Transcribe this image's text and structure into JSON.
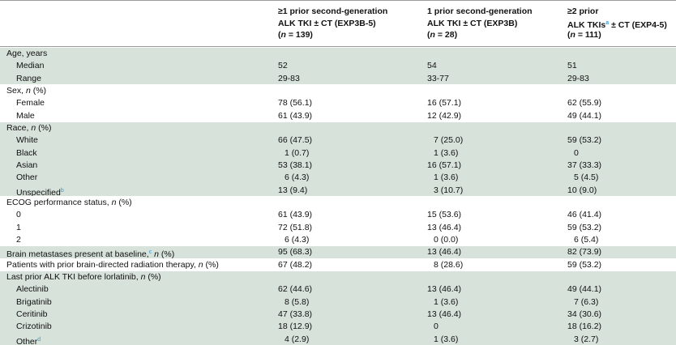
{
  "header": {
    "columns": [
      {
        "lines": [
          [
            "≥1 prior second-generation"
          ],
          [
            "ALK TKI ± CT (EXP3B-5)"
          ],
          [
            "(",
            {
              "text": "n",
              "style": "italic"
            },
            " = 139)"
          ]
        ]
      },
      {
        "lines": [
          [
            "1 prior second-generation"
          ],
          [
            "ALK TKI ± CT (EXP3B)"
          ],
          [
            "(",
            {
              "text": "n",
              "style": "italic"
            },
            " = 28)"
          ]
        ]
      },
      {
        "lines": [
          [
            "≥2 prior"
          ],
          [
            "ALK TKIs",
            {
              "text": "a",
              "style": "sup"
            },
            " ± CT (EXP4-5)"
          ],
          [
            "(",
            {
              "text": "n",
              "style": "italic"
            },
            " = 111)"
          ]
        ]
      }
    ]
  },
  "shade_color": "#d6e2da",
  "sections": [
    {
      "shaded": true,
      "rows": [
        {
          "label": [
            "Age, years"
          ],
          "indent": false,
          "values": []
        },
        {
          "label": [
            "Median"
          ],
          "indent": true,
          "values": [
            "52",
            "54",
            "51"
          ]
        },
        {
          "label": [
            "Range"
          ],
          "indent": true,
          "values": [
            "29-83",
            "33-77",
            "29-83"
          ]
        }
      ]
    },
    {
      "shaded": false,
      "rows": [
        {
          "label": [
            "Sex, ",
            {
              "text": "n",
              "style": "italic"
            },
            " (%)"
          ],
          "indent": false,
          "values": []
        },
        {
          "label": [
            "Female"
          ],
          "indent": true,
          "values": [
            "78 (56.1)",
            "16 (57.1)",
            "62 (55.9)"
          ]
        },
        {
          "label": [
            "Male"
          ],
          "indent": true,
          "values": [
            "61 (43.9)",
            "12 (42.9)",
            "49 (44.1)"
          ]
        }
      ]
    },
    {
      "shaded": true,
      "rows": [
        {
          "label": [
            "Race, ",
            {
              "text": "n",
              "style": "italic"
            },
            " (%)"
          ],
          "indent": false,
          "values": []
        },
        {
          "label": [
            "White"
          ],
          "indent": true,
          "values": [
            "66 (47.5)",
            "7 (25.0)",
            "59 (53.2)"
          ]
        },
        {
          "label": [
            "Black"
          ],
          "indent": true,
          "values": [
            "1 (0.7)",
            "1 (3.6)",
            "0"
          ]
        },
        {
          "label": [
            "Asian"
          ],
          "indent": true,
          "values": [
            "53 (38.1)",
            "16 (57.1)",
            "37 (33.3)"
          ]
        },
        {
          "label": [
            "Other"
          ],
          "indent": true,
          "values": [
            "6 (4.3)",
            "1 (3.6)",
            "5 (4.5)"
          ]
        },
        {
          "label": [
            "Unspecified",
            {
              "text": "b",
              "style": "sup"
            }
          ],
          "indent": true,
          "values": [
            "13 (9.4)",
            "3 (10.7)",
            "10 (9.0)"
          ]
        }
      ]
    },
    {
      "shaded": false,
      "rows": [
        {
          "label": [
            "ECOG performance status, ",
            {
              "text": "n",
              "style": "italic"
            },
            " (%)"
          ],
          "indent": false,
          "values": []
        },
        {
          "label": [
            "0"
          ],
          "indent": true,
          "values": [
            "61 (43.9)",
            "15 (53.6)",
            "46 (41.4)"
          ]
        },
        {
          "label": [
            "1"
          ],
          "indent": true,
          "values": [
            "72 (51.8)",
            "13 (46.4)",
            "59 (53.2)"
          ]
        },
        {
          "label": [
            "2"
          ],
          "indent": true,
          "values": [
            "6 (4.3)",
            "0 (0.0)",
            "6 (5.4)"
          ]
        }
      ]
    },
    {
      "shaded": true,
      "rows": [
        {
          "label": [
            "Brain metastases present at baseline,",
            {
              "text": "c",
              "style": "sup"
            },
            " ",
            {
              "text": "n",
              "style": "italic"
            },
            " (%)"
          ],
          "indent": false,
          "values": [
            "95 (68.3)",
            "13 (46.4)",
            "82 (73.9)"
          ]
        }
      ]
    },
    {
      "shaded": false,
      "rows": [
        {
          "label": [
            "Patients with prior brain-directed radiation therapy, ",
            {
              "text": "n",
              "style": "italic"
            },
            " (%)"
          ],
          "indent": false,
          "values": [
            "67 (48.2)",
            "8 (28.6)",
            "59 (53.2)"
          ]
        }
      ]
    },
    {
      "shaded": true,
      "rows": [
        {
          "label": [
            "Last prior ALK TKI before lorlatinib, ",
            {
              "text": "n",
              "style": "italic"
            },
            " (%)"
          ],
          "indent": false,
          "values": []
        },
        {
          "label": [
            "Alectinib"
          ],
          "indent": true,
          "values": [
            "62 (44.6)",
            "13 (46.4)",
            "49 (44.1)"
          ]
        },
        {
          "label": [
            "Brigatinib"
          ],
          "indent": true,
          "values": [
            "8 (5.8)",
            "1 (3.6)",
            "7 (6.3)"
          ]
        },
        {
          "label": [
            "Ceritinib"
          ],
          "indent": true,
          "values": [
            "47 (33.8)",
            "13 (46.4)",
            "34 (30.6)"
          ]
        },
        {
          "label": [
            "Crizotinib"
          ],
          "indent": true,
          "values": [
            "18 (12.9)",
            "0",
            "18 (16.2)"
          ]
        },
        {
          "label": [
            "Other",
            {
              "text": "d",
              "style": "sup"
            }
          ],
          "indent": true,
          "values": [
            "4 (2.9)",
            "1 (3.6)",
            "3 (2.7)"
          ]
        }
      ]
    }
  ]
}
